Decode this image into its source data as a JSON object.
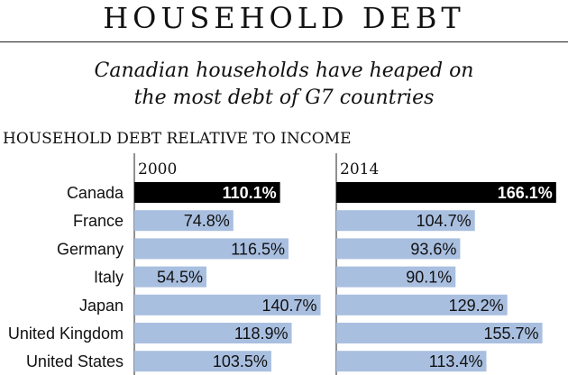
{
  "header": {
    "title": "HOUSEHOLD DEBT",
    "subtitle_line1": "Canadian households have heaped on",
    "subtitle_line2": "the most debt of G7 countries",
    "section_label": "HOUSEHOLD DEBT RELATIVE TO INCOME"
  },
  "colors": {
    "bar": "#a9bfe0",
    "highlight": "#000000",
    "highlight_text": "#ffffff",
    "text": "#111111"
  },
  "chart_data": [
    {
      "type": "bar",
      "orientation": "horizontal",
      "title": "2000",
      "categories": [
        "Canada",
        "France",
        "Germany",
        "Italy",
        "Japan",
        "United Kingdom",
        "United States"
      ],
      "values": [
        110.1,
        74.8,
        116.5,
        54.5,
        140.7,
        118.9,
        103.5
      ],
      "labels": [
        "110.1%",
        "74.8%",
        "116.5%",
        "54.5%",
        "140.7%",
        "118.9%",
        "103.5%"
      ],
      "highlight": "Canada",
      "unit": "%"
    },
    {
      "type": "bar",
      "orientation": "horizontal",
      "title": "2014",
      "categories": [
        "Canada",
        "France",
        "Germany",
        "Italy",
        "Japan",
        "United Kingdom",
        "United States"
      ],
      "values": [
        166.1,
        104.7,
        93.6,
        90.1,
        129.2,
        155.7,
        113.4
      ],
      "labels": [
        "166.1%",
        "104.7%",
        "93.6%",
        "90.1%",
        "129.2%",
        "155.7%",
        "113.4%"
      ],
      "highlight": "Canada",
      "unit": "%"
    }
  ]
}
